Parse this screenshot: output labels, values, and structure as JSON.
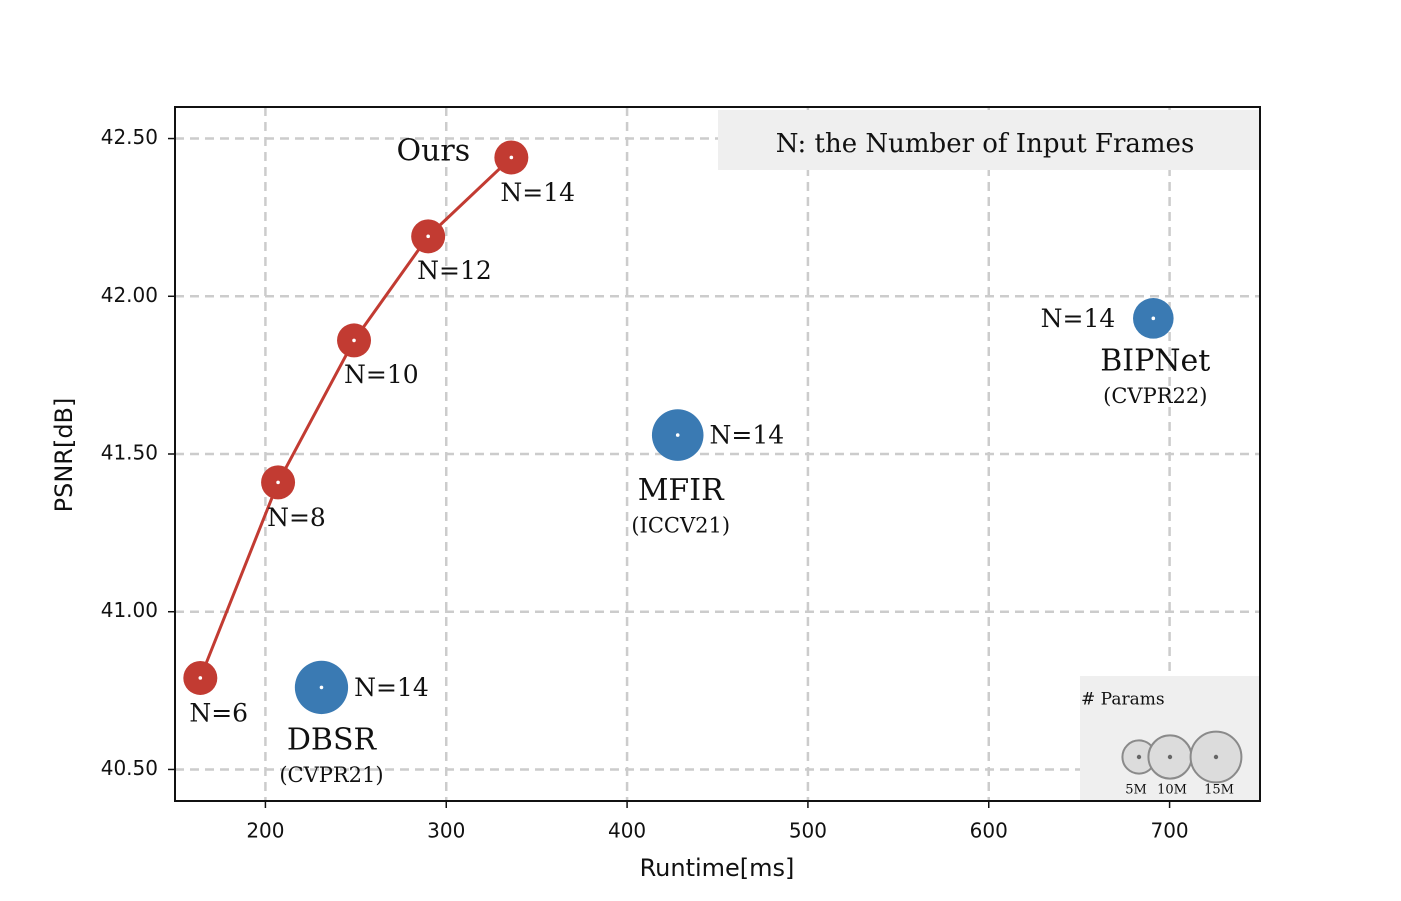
{
  "chart_data": {
    "type": "scatter",
    "title": "",
    "xlabel": "Runtime[ms]",
    "ylabel": "PSNR[dB]",
    "xlim": [
      150,
      750
    ],
    "ylim": [
      40.4,
      42.6
    ],
    "xticks": [
      200,
      300,
      400,
      500,
      600,
      700
    ],
    "yticks": [
      40.5,
      41.0,
      41.5,
      42.0,
      42.5
    ],
    "ytick_labels": [
      "40.50",
      "41.00",
      "41.50",
      "42.00",
      "42.50"
    ],
    "grid": true,
    "series": [
      {
        "name": "Ours",
        "color": "#c23b32",
        "connected": true,
        "points": [
          {
            "x": 164,
            "y": 40.79,
            "label": "N=6",
            "params_m": 4
          },
          {
            "x": 207,
            "y": 41.41,
            "label": "N=8",
            "params_m": 4
          },
          {
            "x": 249,
            "y": 41.86,
            "label": "N=10",
            "params_m": 4
          },
          {
            "x": 290,
            "y": 42.19,
            "label": "N=12",
            "params_m": 4
          },
          {
            "x": 336,
            "y": 42.44,
            "label": "N=14",
            "params_m": 4
          }
        ]
      },
      {
        "name": "DBSR",
        "venue": "(CVPR21)",
        "color": "#3a7ab3",
        "connected": false,
        "points": [
          {
            "x": 231,
            "y": 40.76,
            "label": "N=14",
            "params_m": 13
          }
        ]
      },
      {
        "name": "MFIR",
        "venue": "(ICCV21)",
        "color": "#3a7ab3",
        "connected": false,
        "points": [
          {
            "x": 428,
            "y": 41.56,
            "label": "N=14",
            "params_m": 12
          }
        ]
      },
      {
        "name": "BIPNet",
        "venue": "(CVPR22)",
        "color": "#3a7ab3",
        "connected": false,
        "points": [
          {
            "x": 691,
            "y": 41.93,
            "label": "N=14",
            "params_m": 6.5
          }
        ]
      }
    ],
    "note": "N: the Number of Input Frames",
    "size_legend": {
      "title": "# Params",
      "items": [
        {
          "label": "5M",
          "value": 5
        },
        {
          "label": "10M",
          "value": 10
        },
        {
          "label": "15M",
          "value": 15
        }
      ]
    }
  }
}
